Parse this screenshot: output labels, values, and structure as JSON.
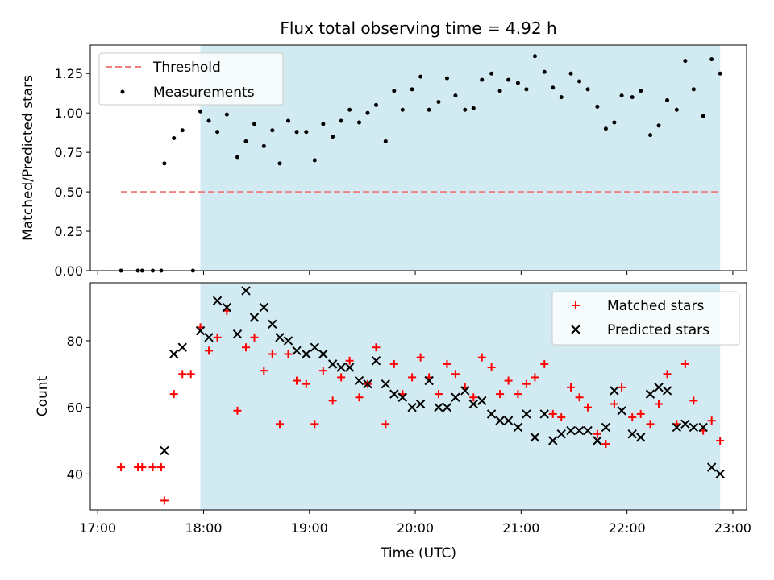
{
  "chart_data": [
    {
      "type": "scatter",
      "title": "Flux total observing time = 4.92 h",
      "ylabel": "Matched/Predicted stars",
      "xlabel": "",
      "x_ticks": [
        "17:00",
        "18:00",
        "19:00",
        "20:00",
        "21:00",
        "22:00",
        "23:00"
      ],
      "y_ticks": [
        "0.00",
        "0.25",
        "0.50",
        "0.75",
        "1.00",
        "1.25"
      ],
      "ylim": [
        0,
        1.43
      ],
      "xlim_hours": [
        16.93,
        23.13
      ],
      "shaded_region_hours": [
        17.97,
        22.88
      ],
      "shaded_color": "#add8e6",
      "legend_position": "upper left",
      "threshold": {
        "name": "Threshold",
        "value": 0.5,
        "x_range_hours": [
          17.22,
          22.88
        ],
        "color": "#f08080"
      },
      "series": [
        {
          "name": "Measurements",
          "color": "#000000",
          "points": [
            [
              17.22,
              0.0
            ],
            [
              17.38,
              0.0
            ],
            [
              17.42,
              0.0
            ],
            [
              17.52,
              0.0
            ],
            [
              17.6,
              0.0
            ],
            [
              17.9,
              0.0
            ],
            [
              17.63,
              0.68
            ],
            [
              17.72,
              0.84
            ],
            [
              17.8,
              0.89
            ],
            [
              17.97,
              1.01
            ],
            [
              18.05,
              0.95
            ],
            [
              18.13,
              0.88
            ],
            [
              18.22,
              0.99
            ],
            [
              18.32,
              0.72
            ],
            [
              18.4,
              0.82
            ],
            [
              18.48,
              0.93
            ],
            [
              18.57,
              0.79
            ],
            [
              18.65,
              0.89
            ],
            [
              18.72,
              0.68
            ],
            [
              18.8,
              0.95
            ],
            [
              18.88,
              0.88
            ],
            [
              18.97,
              0.88
            ],
            [
              19.05,
              0.7
            ],
            [
              19.13,
              0.93
            ],
            [
              19.22,
              0.85
            ],
            [
              19.3,
              0.95
            ],
            [
              19.38,
              1.02
            ],
            [
              19.47,
              0.94
            ],
            [
              19.55,
              1.0
            ],
            [
              19.63,
              1.05
            ],
            [
              19.72,
              0.82
            ],
            [
              19.8,
              1.14
            ],
            [
              19.88,
              1.02
            ],
            [
              19.97,
              1.15
            ],
            [
              20.05,
              1.23
            ],
            [
              20.13,
              1.02
            ],
            [
              20.22,
              1.07
            ],
            [
              20.3,
              1.22
            ],
            [
              20.38,
              1.11
            ],
            [
              20.47,
              1.02
            ],
            [
              20.55,
              1.03
            ],
            [
              20.63,
              1.21
            ],
            [
              20.72,
              1.25
            ],
            [
              20.8,
              1.14
            ],
            [
              20.88,
              1.21
            ],
            [
              20.97,
              1.19
            ],
            [
              21.05,
              1.15
            ],
            [
              21.13,
              1.36
            ],
            [
              21.22,
              1.26
            ],
            [
              21.3,
              1.16
            ],
            [
              21.38,
              1.1
            ],
            [
              21.47,
              1.25
            ],
            [
              21.55,
              1.2
            ],
            [
              21.63,
              1.15
            ],
            [
              21.72,
              1.04
            ],
            [
              21.8,
              0.9
            ],
            [
              21.88,
              0.94
            ],
            [
              21.95,
              1.11
            ],
            [
              22.05,
              1.1
            ],
            [
              22.13,
              1.14
            ],
            [
              22.22,
              0.86
            ],
            [
              22.3,
              0.92
            ],
            [
              22.38,
              1.08
            ],
            [
              22.47,
              1.02
            ],
            [
              22.55,
              1.33
            ],
            [
              22.63,
              1.15
            ],
            [
              22.72,
              0.98
            ],
            [
              22.8,
              1.34
            ],
            [
              22.88,
              1.25
            ]
          ]
        }
      ]
    },
    {
      "type": "scatter",
      "title": "",
      "xlabel": "Time (UTC)",
      "ylabel": "Count",
      "x_ticks": [
        "17:00",
        "18:00",
        "19:00",
        "20:00",
        "21:00",
        "22:00",
        "23:00"
      ],
      "y_ticks": [
        "40",
        "60",
        "80"
      ],
      "ylim": [
        29.2,
        97.4
      ],
      "xlim_hours": [
        16.93,
        23.13
      ],
      "shaded_region_hours": [
        17.97,
        22.88
      ],
      "shaded_color": "#add8e6",
      "legend_position": "upper right",
      "series": [
        {
          "name": "Matched stars",
          "marker": "+",
          "color": "#ff0000",
          "points": [
            [
              17.22,
              42
            ],
            [
              17.38,
              42
            ],
            [
              17.42,
              42
            ],
            [
              17.52,
              42
            ],
            [
              17.6,
              42
            ],
            [
              17.63,
              32
            ],
            [
              17.72,
              64
            ],
            [
              17.8,
              70
            ],
            [
              17.88,
              70
            ],
            [
              17.97,
              84
            ],
            [
              18.05,
              77
            ],
            [
              18.13,
              81
            ],
            [
              18.22,
              89
            ],
            [
              18.32,
              59
            ],
            [
              18.4,
              78
            ],
            [
              18.48,
              81
            ],
            [
              18.57,
              71
            ],
            [
              18.65,
              76
            ],
            [
              18.72,
              55
            ],
            [
              18.8,
              76
            ],
            [
              18.88,
              68
            ],
            [
              18.97,
              67
            ],
            [
              19.05,
              55
            ],
            [
              19.13,
              71
            ],
            [
              19.22,
              62
            ],
            [
              19.3,
              69
            ],
            [
              19.38,
              74
            ],
            [
              19.47,
              63
            ],
            [
              19.55,
              67
            ],
            [
              19.63,
              78
            ],
            [
              19.72,
              55
            ],
            [
              19.8,
              73
            ],
            [
              19.88,
              64
            ],
            [
              19.97,
              69
            ],
            [
              20.05,
              75
            ],
            [
              20.13,
              69
            ],
            [
              20.22,
              64
            ],
            [
              20.3,
              73
            ],
            [
              20.38,
              70
            ],
            [
              20.47,
              66
            ],
            [
              20.55,
              63
            ],
            [
              20.63,
              75
            ],
            [
              20.72,
              72
            ],
            [
              20.8,
              64
            ],
            [
              20.88,
              68
            ],
            [
              20.97,
              64
            ],
            [
              21.05,
              67
            ],
            [
              21.13,
              69
            ],
            [
              21.22,
              73
            ],
            [
              21.3,
              58
            ],
            [
              21.38,
              57
            ],
            [
              21.47,
              66
            ],
            [
              21.55,
              63
            ],
            [
              21.63,
              60
            ],
            [
              21.72,
              52
            ],
            [
              21.8,
              49
            ],
            [
              21.88,
              61
            ],
            [
              21.95,
              66
            ],
            [
              22.05,
              57
            ],
            [
              22.13,
              58
            ],
            [
              22.22,
              55
            ],
            [
              22.3,
              61
            ],
            [
              22.38,
              70
            ],
            [
              22.47,
              55
            ],
            [
              22.55,
              73
            ],
            [
              22.63,
              62
            ],
            [
              22.72,
              53
            ],
            [
              22.8,
              56
            ],
            [
              22.88,
              50
            ]
          ]
        },
        {
          "name": "Predicted stars",
          "marker": "x",
          "color": "#000000",
          "points": [
            [
              17.63,
              47
            ],
            [
              17.72,
              76
            ],
            [
              17.8,
              78
            ],
            [
              17.97,
              83
            ],
            [
              18.05,
              81
            ],
            [
              18.13,
              92
            ],
            [
              18.22,
              90
            ],
            [
              18.32,
              82
            ],
            [
              18.4,
              95
            ],
            [
              18.48,
              87
            ],
            [
              18.57,
              90
            ],
            [
              18.65,
              85
            ],
            [
              18.72,
              81
            ],
            [
              18.8,
              80
            ],
            [
              18.88,
              77
            ],
            [
              18.97,
              76
            ],
            [
              19.05,
              78
            ],
            [
              19.13,
              76
            ],
            [
              19.22,
              73
            ],
            [
              19.3,
              72
            ],
            [
              19.38,
              72
            ],
            [
              19.47,
              68
            ],
            [
              19.55,
              67
            ],
            [
              19.63,
              74
            ],
            [
              19.72,
              67
            ],
            [
              19.8,
              64
            ],
            [
              19.88,
              63
            ],
            [
              19.97,
              60
            ],
            [
              20.05,
              61
            ],
            [
              20.13,
              68
            ],
            [
              20.22,
              60
            ],
            [
              20.3,
              60
            ],
            [
              20.38,
              63
            ],
            [
              20.47,
              65
            ],
            [
              20.55,
              61
            ],
            [
              20.63,
              62
            ],
            [
              20.72,
              58
            ],
            [
              20.8,
              56
            ],
            [
              20.88,
              56
            ],
            [
              20.97,
              54
            ],
            [
              21.05,
              58
            ],
            [
              21.13,
              51
            ],
            [
              21.22,
              58
            ],
            [
              21.3,
              50
            ],
            [
              21.38,
              52
            ],
            [
              21.47,
              53
            ],
            [
              21.55,
              53
            ],
            [
              21.63,
              53
            ],
            [
              21.72,
              50
            ],
            [
              21.8,
              54
            ],
            [
              21.88,
              65
            ],
            [
              21.95,
              59
            ],
            [
              22.05,
              52
            ],
            [
              22.13,
              51
            ],
            [
              22.22,
              64
            ],
            [
              22.3,
              66
            ],
            [
              22.38,
              65
            ],
            [
              22.47,
              54
            ],
            [
              22.55,
              55
            ],
            [
              22.63,
              54
            ],
            [
              22.72,
              54
            ],
            [
              22.8,
              42
            ],
            [
              22.88,
              40
            ]
          ]
        }
      ]
    }
  ]
}
